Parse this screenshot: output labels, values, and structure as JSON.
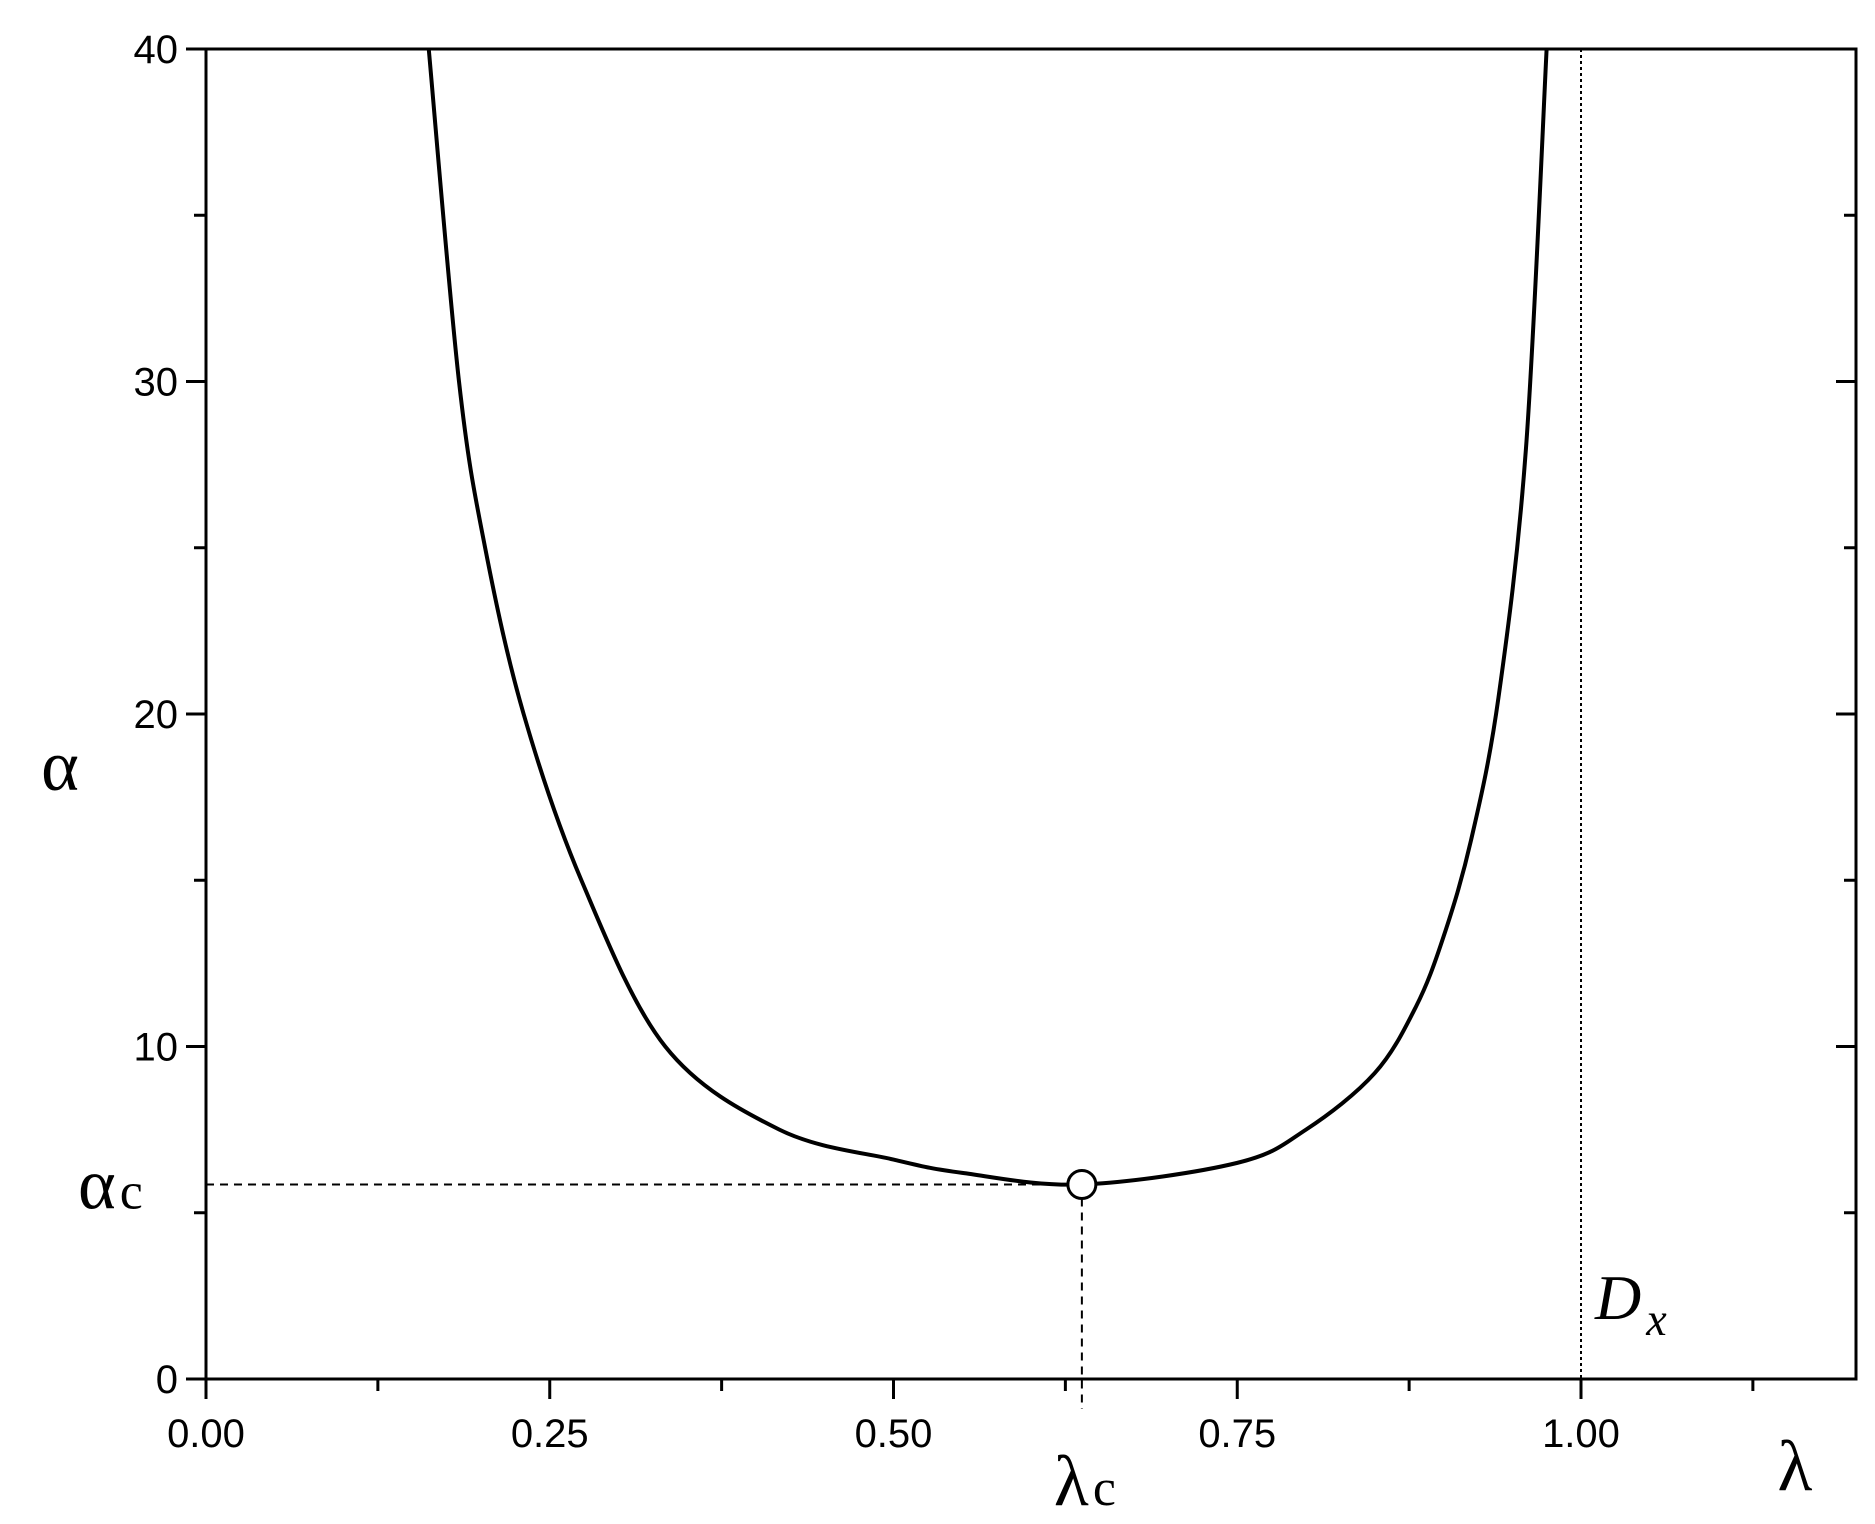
{
  "chart_data": {
    "type": "line",
    "x_label": "λ",
    "y_label": "α",
    "xlim": [
      0,
      1.2
    ],
    "ylim": [
      0,
      40
    ],
    "xticks": [
      {
        "value": 0,
        "label": "0.00"
      },
      {
        "value": 0.25,
        "label": "0.25"
      },
      {
        "value": 0.5,
        "label": "0.50"
      },
      {
        "value": 0.75,
        "label": "0.75"
      },
      {
        "value": 1,
        "label": "1.00"
      }
    ],
    "yticks": [
      0,
      10,
      20,
      30,
      40
    ],
    "minor_xticks": [
      0.125,
      0.375,
      0.625,
      0.875,
      1.125
    ],
    "minor_yticks": [
      5,
      15,
      25,
      35
    ],
    "series": [
      {
        "color": "#000000",
        "x": [
          0.162,
          0.184,
          0.203,
          0.231,
          0.273,
          0.334,
          0.417,
          0.5,
          0.55,
          0.637,
          0.75,
          0.8,
          0.85,
          0.88,
          0.9,
          0.92,
          0.94,
          0.96,
          0.975
        ],
        "values": [
          40,
          30,
          25,
          20,
          15,
          10,
          7.5,
          6.6,
          6.2,
          5.85,
          6.5,
          7.5,
          9.2,
          11.2,
          13.3,
          16.2,
          20.5,
          28,
          40
        ]
      }
    ],
    "critical_point": {
      "x": 0.637,
      "y": 5.85,
      "x_label": {
        "base": "λ",
        "sub": "c"
      },
      "y_label": {
        "base": "α",
        "sub": "c"
      }
    },
    "vline": {
      "x": 1,
      "label": {
        "base": "D",
        "sub": "x"
      }
    }
  }
}
